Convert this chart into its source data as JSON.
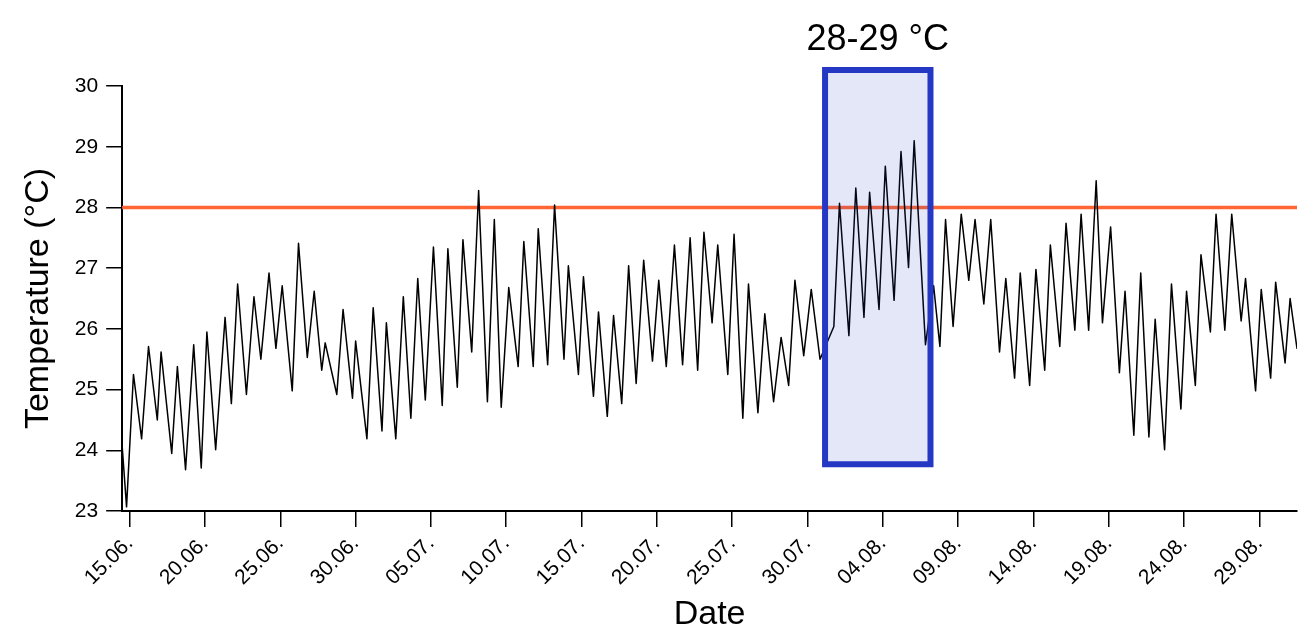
{
  "chart_data": {
    "type": "line",
    "xlabel": "Date",
    "ylabel": "Temperature (°C)",
    "grid": false,
    "legend": false,
    "marker": "none",
    "line_style": "solid",
    "xlim": [
      "--06-14T12:00",
      "--08-31T12:00"
    ],
    "ylim": [
      23,
      30
    ],
    "xticks": [
      {
        "value": "--06-15",
        "label": "15.06."
      },
      {
        "value": "--06-20",
        "label": "20.06."
      },
      {
        "value": "--06-25",
        "label": "25.06."
      },
      {
        "value": "--06-30",
        "label": "30.06."
      },
      {
        "value": "--07-05",
        "label": "05.07."
      },
      {
        "value": "--07-10",
        "label": "10.07."
      },
      {
        "value": "--07-15",
        "label": "15.07."
      },
      {
        "value": "--07-20",
        "label": "20.07."
      },
      {
        "value": "--07-25",
        "label": "25.07."
      },
      {
        "value": "--07-30",
        "label": "30.07."
      },
      {
        "value": "--08-04",
        "label": "04.08."
      },
      {
        "value": "--08-09",
        "label": "09.08."
      },
      {
        "value": "--08-14",
        "label": "14.08."
      },
      {
        "value": "--08-19",
        "label": "19.08."
      },
      {
        "value": "--08-24",
        "label": "24.08."
      },
      {
        "value": "--08-29",
        "label": "29.08."
      }
    ],
    "yticks": [
      23,
      24,
      25,
      26,
      27,
      28,
      29,
      30
    ],
    "ref_lines": [
      {
        "axis": "y",
        "value": 28,
        "color": "#ff6633"
      }
    ],
    "bands": [
      {
        "axis": "x",
        "from": "--07-31T04:00",
        "to": "--08-07T04:00",
        "label": "28-29 °C",
        "color": "#2438c4"
      }
    ],
    "series": [
      {
        "color": "#000000",
        "x": [
          "--06-14T12:00",
          "--06-14T19:00",
          "--06-15T06:00",
          "--06-15T19:00",
          "--06-16T06:00",
          "--06-16T20:00",
          "--06-17T02:00",
          "--06-17T19:00",
          "--06-18T04:00",
          "--06-18T17:00",
          "--06-19T06:00",
          "--06-19T18:00",
          "--06-20T03:00",
          "--06-20T17:00",
          "--06-21T08:00",
          "--06-21T18:00",
          "--06-22T04:00",
          "--06-22T18:00",
          "--06-23T06:00",
          "--06-23T17:00",
          "--06-24T06:00",
          "--06-24T17:00",
          "--06-25T03:00",
          "--06-25T19:00",
          "--06-26T05:00",
          "--06-26T19:00",
          "--06-27T06:00",
          "--06-27T18:00",
          "--06-27T23:30",
          "--06-28T18:00",
          "--06-29T04:00",
          "--06-29T19:00",
          "--06-30T00:00",
          "--06-30T18:00",
          "--07-01T04:00",
          "--07-01T18:00",
          "--07-02T01:00",
          "--07-02T16:00",
          "--07-03T04:00",
          "--07-03T16:00",
          "--07-04T03:00",
          "--07-04T15:00",
          "--07-05T04:00",
          "--07-05T18:00",
          "--07-06T03:00",
          "--07-06T18:00",
          "--07-07T03:00",
          "--07-07T17:00",
          "--07-08T04:00",
          "--07-08T18:00",
          "--07-09T05:00",
          "--07-09T16:00",
          "--07-10T04:00",
          "--07-10T19:00",
          "--07-11T04:00",
          "--07-11T19:00",
          "--07-12T03:00",
          "--07-12T18:00",
          "--07-13T05:00",
          "--07-13T20:00",
          "--07-14T03:00",
          "--07-14T19:00",
          "--07-15T03:00",
          "--07-15T19:00",
          "--07-16T03:00",
          "--07-16T17:00",
          "--07-17T03:00",
          "--07-17T16:00",
          "--07-18T03:00",
          "--07-18T15:00",
          "--07-19T03:00",
          "--07-19T17:00",
          "--07-20T03:00",
          "--07-20T15:00",
          "--07-21T04:00",
          "--07-21T17:00",
          "--07-22T05:00",
          "--07-22T17:00",
          "--07-23T03:00",
          "--07-23T16:00",
          "--07-24T01:00",
          "--07-24T17:00",
          "--07-25T03:00",
          "--07-25T17:00",
          "--07-26T02:00",
          "--07-26T17:00",
          "--07-27T04:00",
          "--07-27T18:00",
          "--07-28T06:00",
          "--07-28T18:00",
          "--07-29T04:00",
          "--07-29T18:00",
          "--07-30T06:00",
          "--07-30T20:00",
          "--07-31T18:00",
          "--08-01T03:00",
          "--08-01T18:00",
          "--08-02T05:00",
          "--08-02T18:00",
          "--08-03T03:00",
          "--08-03T18:00",
          "--08-04T04:00",
          "--08-04T18:00",
          "--08-05T05:00",
          "--08-05T17:00",
          "--08-06T02:00",
          "--08-06T20:00",
          "--08-07T09:00",
          "--08-07T19:00",
          "--08-08T04:00",
          "--08-08T16:00",
          "--08-09T05:00",
          "--08-09T17:00",
          "--08-10T03:00",
          "--08-10T17:00",
          "--08-11T04:00",
          "--08-11T18:00",
          "--08-12T04:00",
          "--08-12T18:00",
          "--08-13T03:00",
          "--08-13T18:00",
          "--08-14T04:00",
          "--08-14T18:00",
          "--08-15T03:00",
          "--08-15T18:00",
          "--08-16T04:00",
          "--08-16T18:00",
          "--08-17T04:00",
          "--08-17T16:00",
          "--08-18T04:00",
          "--08-18T14:00",
          "--08-19T03:00",
          "--08-19T17:00",
          "--08-20T02:00",
          "--08-20T16:00",
          "--08-21T03:00",
          "--08-21T16:00",
          "--08-22T02:00",
          "--08-22T17:00",
          "--08-23T04:00",
          "--08-23T19:00",
          "--08-24T04:00",
          "--08-24T18:00",
          "--08-25T03:00",
          "--08-25T18:00",
          "--08-26T03:00",
          "--08-26T17:00",
          "--08-27T04:00",
          "--08-27T19:00",
          "--08-28T02:00",
          "--08-28T18:00",
          "--08-29T03:00",
          "--08-29T18:00",
          "--08-30T02:00",
          "--08-30T17:00",
          "--08-31T01:00",
          "--08-31T12:00"
        ],
        "values": [
          24.07,
          23.07,
          25.25,
          24.19,
          25.71,
          24.5,
          25.62,
          23.95,
          25.38,
          23.68,
          25.74,
          23.71,
          25.95,
          24.01,
          26.19,
          24.77,
          26.74,
          24.92,
          26.53,
          25.5,
          26.92,
          25.68,
          26.71,
          24.98,
          27.41,
          25.53,
          26.62,
          25.32,
          25.77,
          24.92,
          26.32,
          24.86,
          25.8,
          24.19,
          26.35,
          24.32,
          26.1,
          24.19,
          26.53,
          24.53,
          26.83,
          24.83,
          27.35,
          24.74,
          27.32,
          25.04,
          27.47,
          25.62,
          28.28,
          24.8,
          27.8,
          24.71,
          26.68,
          25.38,
          27.44,
          25.38,
          27.65,
          25.41,
          28.04,
          25.5,
          27.04,
          25.25,
          26.86,
          24.89,
          26.28,
          24.56,
          26.22,
          24.77,
          27.04,
          25.1,
          27.13,
          25.47,
          26.8,
          25.38,
          27.38,
          25.41,
          27.5,
          25.32,
          27.59,
          26.1,
          27.38,
          25.25,
          27.56,
          24.53,
          26.74,
          24.62,
          26.25,
          24.8,
          25.86,
          25.07,
          26.8,
          25.56,
          26.65,
          25.5,
          26.04,
          28.07,
          25.89,
          28.32,
          26.19,
          28.25,
          26.32,
          28.68,
          26.47,
          28.92,
          27.01,
          29.1,
          25.74,
          26.71,
          25.71,
          27.8,
          26.04,
          27.89,
          26.8,
          27.8,
          26.41,
          27.8,
          25.62,
          26.83,
          25.19,
          26.92,
          25.07,
          26.98,
          25.32,
          27.38,
          25.71,
          27.74,
          25.98,
          27.89,
          25.98,
          28.44,
          26.1,
          27.68,
          25.28,
          26.62,
          24.25,
          26.92,
          24.22,
          26.16,
          24.01,
          26.74,
          24.68,
          26.62,
          25.07,
          27.22,
          25.95,
          27.89,
          25.98,
          27.89,
          26.13,
          26.83,
          24.98,
          26.65,
          25.19,
          26.77,
          25.44,
          26.5,
          25.68
        ]
      }
    ]
  }
}
